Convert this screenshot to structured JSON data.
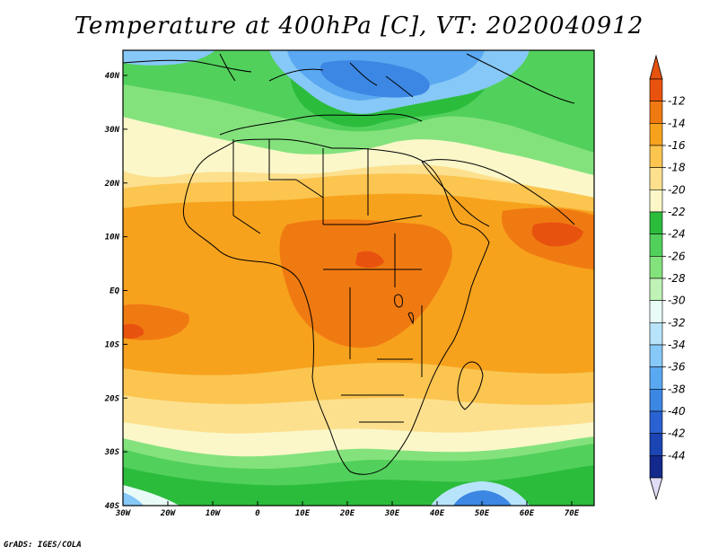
{
  "title": "Temperature at 400hPa [C], VT: 2020040912",
  "credit": "GrADS: IGES/COLA",
  "axes": {
    "lat_ticks": [
      "40N",
      "30N",
      "20N",
      "10N",
      "EQ",
      "10S",
      "20S",
      "30S",
      "40S"
    ],
    "lon_ticks": [
      "30W",
      "20W",
      "10W",
      "0",
      "10E",
      "20E",
      "30E",
      "40E",
      "50E",
      "60E",
      "70E"
    ]
  },
  "colorbar": {
    "labels": [
      "-12",
      "-14",
      "-16",
      "-18",
      "-20",
      "-22",
      "-24",
      "-26",
      "-28",
      "-30",
      "-32",
      "-34",
      "-36",
      "-38",
      "-40",
      "-42",
      "-44"
    ],
    "colors": [
      "#e8520f",
      "#f07a12",
      "#f7a21d",
      "#fbc550",
      "#fde08e",
      "#fbf7c9",
      "#2cbc3c",
      "#52d05c",
      "#84e27d",
      "#bff3b6",
      "#e9fbf6",
      "#b8e4fb",
      "#86c8f7",
      "#5aa8f1",
      "#3c87e3",
      "#2a62d1",
      "#1b45b4",
      "#14298c"
    ],
    "top_color": "#e8520f",
    "bottom_color": "#e0dcf6"
  },
  "field": {
    "palette": {
      "greenDark": "#2cbc3c",
      "greenMid": "#52d05c",
      "greenLight": "#84e27d",
      "yellowPale": "#fbf7c9",
      "yellow": "#fde08e",
      "tan": "#fbc550",
      "orangeLight": "#f7a21d",
      "orange": "#f07a12",
      "red": "#e8520f",
      "blueLight": "#86c8f7",
      "blueMid": "#5aa8f1",
      "blueDeep": "#3c87e3",
      "bluePale": "#b8e4fb",
      "cyanPale": "#e9fbf6"
    }
  }
}
